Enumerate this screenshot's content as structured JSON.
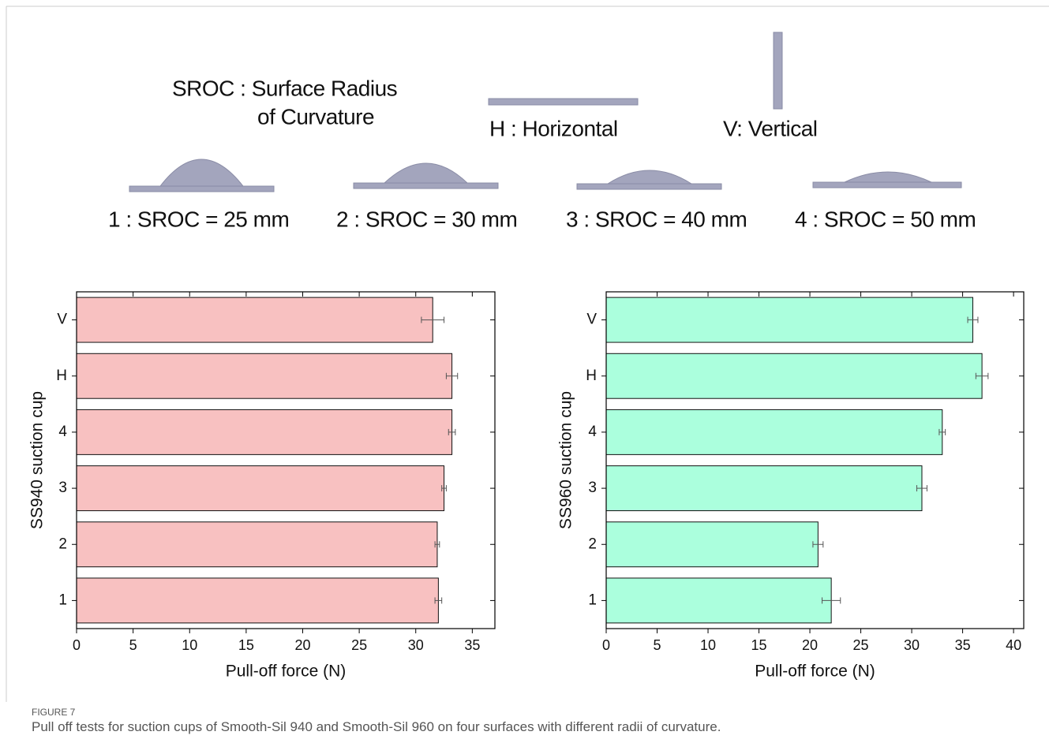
{
  "diagram": {
    "sroc_line1": "SROC : Surface Radius",
    "sroc_line2": "of Curvature",
    "horizontal": "H : Horizontal",
    "vertical": "V: Vertical",
    "surfaces": [
      "1 : SROC = 25 mm",
      "2 : SROC = 30 mm",
      "3 : SROC = 40 mm",
      "4 : SROC = 50 mm"
    ]
  },
  "chart_data": [
    {
      "type": "barh",
      "ylabel": "SS940 suction cup",
      "xlabel": "Pull-off force (N)",
      "categories": [
        "1",
        "2",
        "3",
        "4",
        "H",
        "V"
      ],
      "values": [
        32,
        31.9,
        32.5,
        33.2,
        33.2,
        31.5
      ],
      "errors": [
        0.3,
        0.2,
        0.2,
        0.3,
        0.5,
        1.0
      ],
      "color": "#f8c1c1",
      "xlim": [
        0,
        37
      ],
      "xticks": [
        0,
        5,
        10,
        15,
        20,
        25,
        30,
        35
      ]
    },
    {
      "type": "barh",
      "ylabel": "SS960 suction cup",
      "xlabel": "Pull-off force (N)",
      "categories": [
        "1",
        "2",
        "3",
        "4",
        "H",
        "V"
      ],
      "values": [
        22.1,
        20.8,
        31,
        33,
        36.9,
        36
      ],
      "errors": [
        0.9,
        0.5,
        0.5,
        0.3,
        0.6,
        0.5
      ],
      "color": "#abffdd",
      "xlim": [
        0,
        41
      ],
      "xticks": [
        0,
        5,
        10,
        15,
        20,
        25,
        30,
        35,
        40
      ]
    }
  ],
  "caption": {
    "label": "FIGURE 7",
    "text": "Pull off tests for suction cups of Smooth-Sil 940 and Smooth-Sil 960 on four surfaces with different radii of curvature."
  }
}
